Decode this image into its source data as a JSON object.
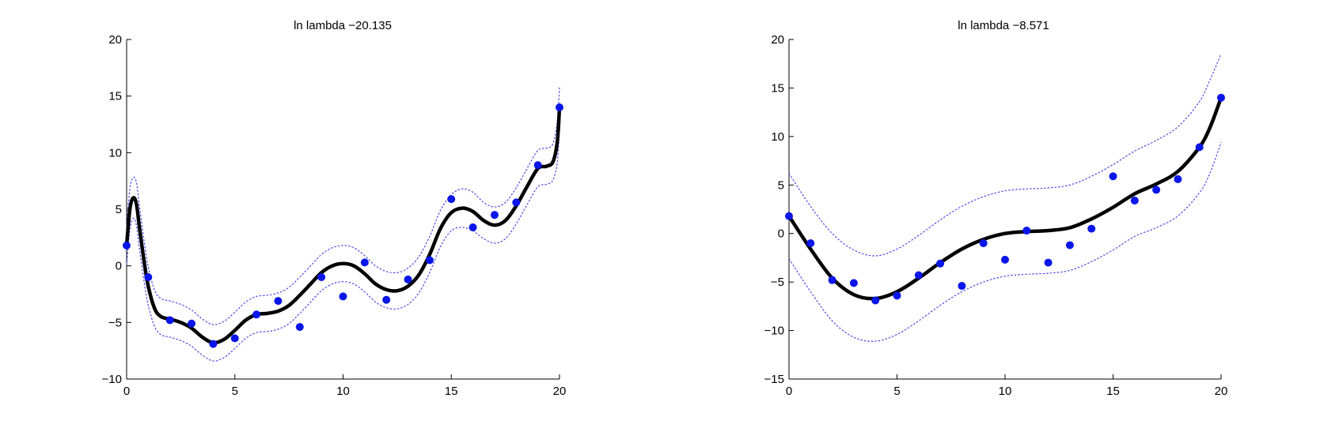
{
  "chart_data": [
    {
      "type": "line",
      "title": "ln lambda −20.135",
      "xlabel": "",
      "ylabel": "",
      "xlim": [
        0,
        20
      ],
      "ylim": [
        -10,
        20
      ],
      "xticks": [
        0,
        5,
        10,
        15,
        20
      ],
      "yticks": [
        -10,
        -5,
        0,
        5,
        10,
        15,
        20
      ],
      "xtick_labels": [
        "0",
        "5",
        "10",
        "15",
        "20"
      ],
      "ytick_labels": [
        "−10",
        "−5",
        "0",
        "5",
        "10",
        "15",
        "20"
      ],
      "grid": false,
      "series": [
        {
          "kind": "scatter",
          "color": "#0a16e8",
          "x": [
            0,
            1,
            2,
            3,
            4,
            5,
            6,
            7,
            8,
            9,
            10,
            11,
            12,
            13,
            14,
            15,
            16,
            17,
            18,
            19,
            20
          ],
          "y": [
            1.8,
            -1.0,
            -4.8,
            -5.1,
            -6.9,
            -6.4,
            -4.3,
            -3.1,
            -5.4,
            -1.0,
            -2.7,
            0.3,
            -3.0,
            -1.2,
            0.5,
            5.9,
            3.4,
            4.5,
            5.6,
            8.9,
            14.0
          ]
        },
        {
          "kind": "line",
          "color": "#000000",
          "x": [
            0,
            0.15,
            0.3,
            0.45,
            0.6,
            0.8,
            1.0,
            1.3,
            1.6,
            2,
            2.5,
            3,
            3.5,
            4,
            4.5,
            5,
            5.5,
            6,
            6.5,
            7,
            7.5,
            8,
            8.5,
            9,
            9.5,
            10,
            10.5,
            11,
            11.5,
            12,
            12.5,
            13,
            13.5,
            14,
            14.5,
            15,
            15.5,
            16,
            16.5,
            17,
            17.5,
            18,
            18.5,
            19,
            19.4,
            19.7,
            19.9,
            20
          ],
          "y": [
            1.8,
            5.0,
            6.0,
            5.5,
            3.3,
            0.5,
            -1.8,
            -3.8,
            -4.5,
            -4.7,
            -5.0,
            -5.5,
            -6.3,
            -6.8,
            -6.5,
            -5.7,
            -4.8,
            -4.3,
            -4.2,
            -4.0,
            -3.5,
            -2.6,
            -1.6,
            -0.6,
            0.0,
            0.2,
            0.0,
            -0.7,
            -1.6,
            -2.1,
            -2.2,
            -1.8,
            -0.8,
            1.0,
            3.3,
            4.7,
            5.1,
            4.8,
            4.0,
            3.6,
            4.0,
            5.3,
            7.0,
            8.6,
            8.8,
            9.2,
            11.0,
            14.0
          ]
        },
        {
          "kind": "dashed",
          "color": "#4a4ae6",
          "x": [
            0,
            0.15,
            0.3,
            0.45,
            0.6,
            0.8,
            1.0,
            1.3,
            1.6,
            2,
            2.5,
            3,
            3.5,
            4,
            4.5,
            5,
            5.5,
            6,
            6.5,
            7,
            7.5,
            8,
            8.5,
            9,
            9.5,
            10,
            10.5,
            11,
            11.5,
            12,
            12.5,
            13,
            13.5,
            14,
            14.5,
            15,
            15.5,
            16,
            16.5,
            17,
            17.5,
            18,
            18.5,
            19,
            19.4,
            19.7,
            19.9,
            20
          ],
          "y": [
            3.5,
            6.8,
            7.8,
            7.4,
            5.2,
            2.3,
            -0.1,
            -2.2,
            -2.9,
            -3.1,
            -3.4,
            -3.9,
            -4.7,
            -5.2,
            -4.9,
            -4.1,
            -3.2,
            -2.7,
            -2.6,
            -2.4,
            -1.9,
            -1.0,
            0.0,
            1.0,
            1.6,
            1.8,
            1.6,
            0.9,
            0.0,
            -0.5,
            -0.6,
            -0.2,
            0.8,
            2.6,
            4.9,
            6.3,
            6.8,
            6.5,
            5.6,
            5.2,
            5.6,
            6.9,
            8.6,
            10.2,
            10.4,
            10.8,
            12.8,
            15.8
          ]
        },
        {
          "kind": "dashed",
          "color": "#4a4ae6",
          "x": [
            0,
            0.15,
            0.3,
            0.45,
            0.6,
            0.8,
            1.0,
            1.3,
            1.6,
            2,
            2.5,
            3,
            3.5,
            4,
            4.5,
            5,
            5.5,
            6,
            6.5,
            7,
            7.5,
            8,
            8.5,
            9,
            9.5,
            10,
            10.5,
            11,
            11.5,
            12,
            12.5,
            13,
            13.5,
            14,
            14.5,
            15,
            15.5,
            16,
            16.5,
            17,
            17.5,
            18,
            18.5,
            19,
            19.4,
            19.7,
            19.9,
            20
          ],
          "y": [
            0.1,
            3.2,
            4.2,
            3.6,
            1.4,
            -1.3,
            -3.5,
            -5.4,
            -6.1,
            -6.3,
            -6.6,
            -7.1,
            -7.9,
            -8.4,
            -8.1,
            -7.3,
            -6.4,
            -5.9,
            -5.8,
            -5.6,
            -5.1,
            -4.2,
            -3.2,
            -2.2,
            -1.6,
            -1.4,
            -1.6,
            -2.3,
            -3.2,
            -3.7,
            -3.8,
            -3.4,
            -2.4,
            -0.6,
            1.7,
            3.1,
            3.4,
            3.1,
            2.4,
            2.0,
            2.4,
            3.7,
            5.4,
            7.0,
            7.2,
            7.6,
            9.2,
            12.2
          ]
        }
      ]
    },
    {
      "type": "line",
      "title": "ln lambda −8.571",
      "xlabel": "",
      "ylabel": "",
      "xlim": [
        0,
        20
      ],
      "ylim": [
        -15,
        20
      ],
      "xticks": [
        0,
        5,
        10,
        15,
        20
      ],
      "yticks": [
        -15,
        -10,
        -5,
        0,
        5,
        10,
        15,
        20
      ],
      "xtick_labels": [
        "0",
        "5",
        "10",
        "15",
        "20"
      ],
      "ytick_labels": [
        "−15",
        "−10",
        "−5",
        "0",
        "5",
        "10",
        "15",
        "20"
      ],
      "grid": false,
      "series": [
        {
          "kind": "scatter",
          "color": "#0a16e8",
          "x": [
            0,
            1,
            2,
            3,
            4,
            5,
            6,
            7,
            8,
            9,
            10,
            11,
            12,
            13,
            14,
            15,
            16,
            17,
            18,
            19,
            20
          ],
          "y": [
            1.8,
            -1.0,
            -4.8,
            -5.1,
            -6.9,
            -6.4,
            -4.3,
            -3.1,
            -5.4,
            -1.0,
            -2.7,
            0.3,
            -3.0,
            -1.2,
            0.5,
            5.9,
            3.4,
            4.5,
            5.6,
            8.9,
            14.0
          ]
        },
        {
          "kind": "line",
          "color": "#000000",
          "x": [
            0,
            1,
            2,
            3,
            4,
            5,
            6,
            7,
            8,
            9,
            10,
            11,
            12,
            13,
            14,
            15,
            16,
            17,
            18,
            19,
            19.5,
            20
          ],
          "y": [
            1.8,
            -1.6,
            -4.6,
            -6.3,
            -6.7,
            -6.0,
            -4.6,
            -3.0,
            -1.6,
            -0.6,
            0.0,
            0.2,
            0.3,
            0.6,
            1.5,
            2.7,
            4.1,
            5.1,
            6.4,
            8.9,
            11.0,
            14.0
          ]
        },
        {
          "kind": "dashed",
          "color": "#4a4ae6",
          "x": [
            0,
            1,
            2,
            3,
            4,
            5,
            6,
            7,
            8,
            9,
            10,
            11,
            12,
            13,
            14,
            15,
            16,
            17,
            18,
            19,
            19.5,
            20
          ],
          "y": [
            6.2,
            2.8,
            0.0,
            -1.7,
            -2.3,
            -1.6,
            -0.2,
            1.4,
            2.8,
            3.8,
            4.4,
            4.6,
            4.7,
            5.0,
            5.9,
            7.1,
            8.5,
            9.6,
            11.0,
            13.6,
            15.9,
            18.5
          ]
        },
        {
          "kind": "dashed",
          "color": "#4a4ae6",
          "x": [
            0,
            1,
            2,
            3,
            4,
            5,
            6,
            7,
            8,
            9,
            10,
            11,
            12,
            13,
            14,
            15,
            16,
            17,
            18,
            19,
            19.5,
            20
          ],
          "y": [
            -2.6,
            -6.0,
            -9.0,
            -10.7,
            -11.1,
            -10.4,
            -9.0,
            -7.4,
            -6.0,
            -5.0,
            -4.4,
            -4.2,
            -4.1,
            -3.8,
            -2.9,
            -1.7,
            -0.3,
            0.6,
            1.8,
            4.2,
            6.3,
            9.4
          ]
        }
      ]
    }
  ]
}
